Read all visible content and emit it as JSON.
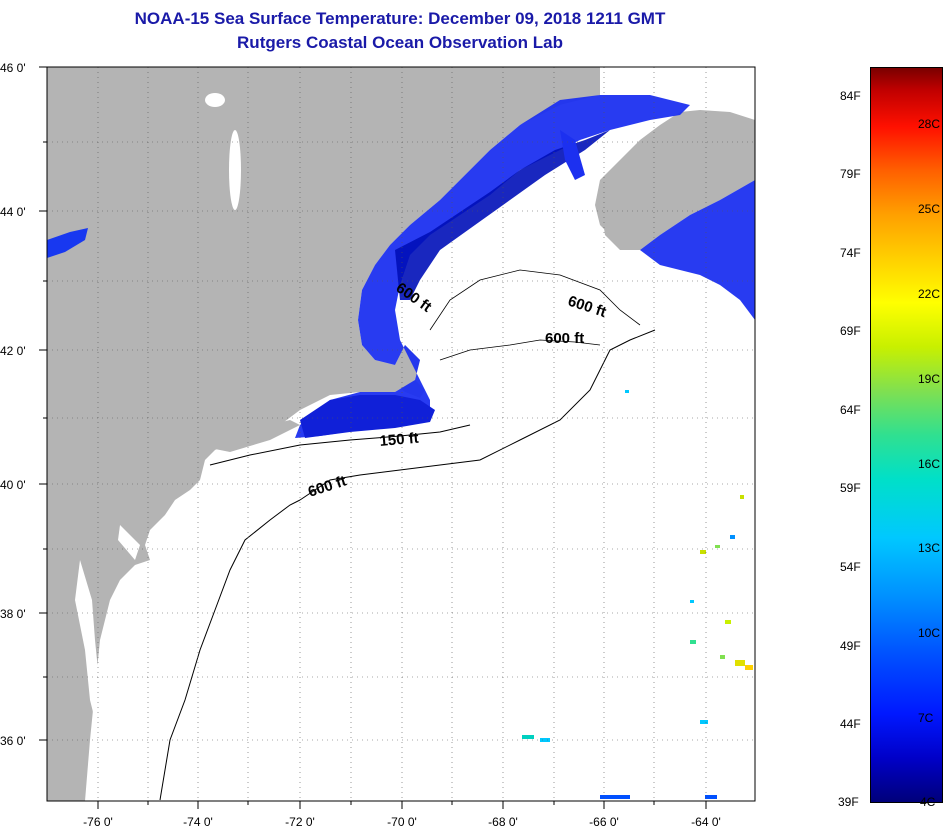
{
  "header": {
    "title": "NOAA-15 Sea Surface Temperature:  December 09, 2018 1211 GMT",
    "subtitle": "Rutgers Coastal Ocean Observation Lab"
  },
  "map": {
    "lon_ticks": [
      "-76 0'",
      "-74 0'",
      "-72 0'",
      "-70 0'",
      "-68 0'",
      "-66 0'",
      "-64 0'"
    ],
    "lat_ticks": [
      "46 0'",
      "44 0'",
      "42 0'",
      "40 0'",
      "38 0'",
      "36 0'"
    ],
    "contour_labels": [
      "600 ft",
      "600 ft",
      "600 ft",
      "150 ft",
      "600 ft"
    ],
    "colors": {
      "land": "#b4b4b4",
      "ocean_cold": "#1838f0",
      "ocean_warm": "#0008b0"
    }
  },
  "colorbar": {
    "fahrenheit": [
      "84F",
      "79F",
      "74F",
      "69F",
      "64F",
      "59F",
      "54F",
      "49F",
      "44F",
      "39F"
    ],
    "celsius": [
      "28C",
      "25C",
      "22C",
      "19C",
      "16C",
      "13C",
      "10C",
      "7C",
      "4C"
    ]
  }
}
